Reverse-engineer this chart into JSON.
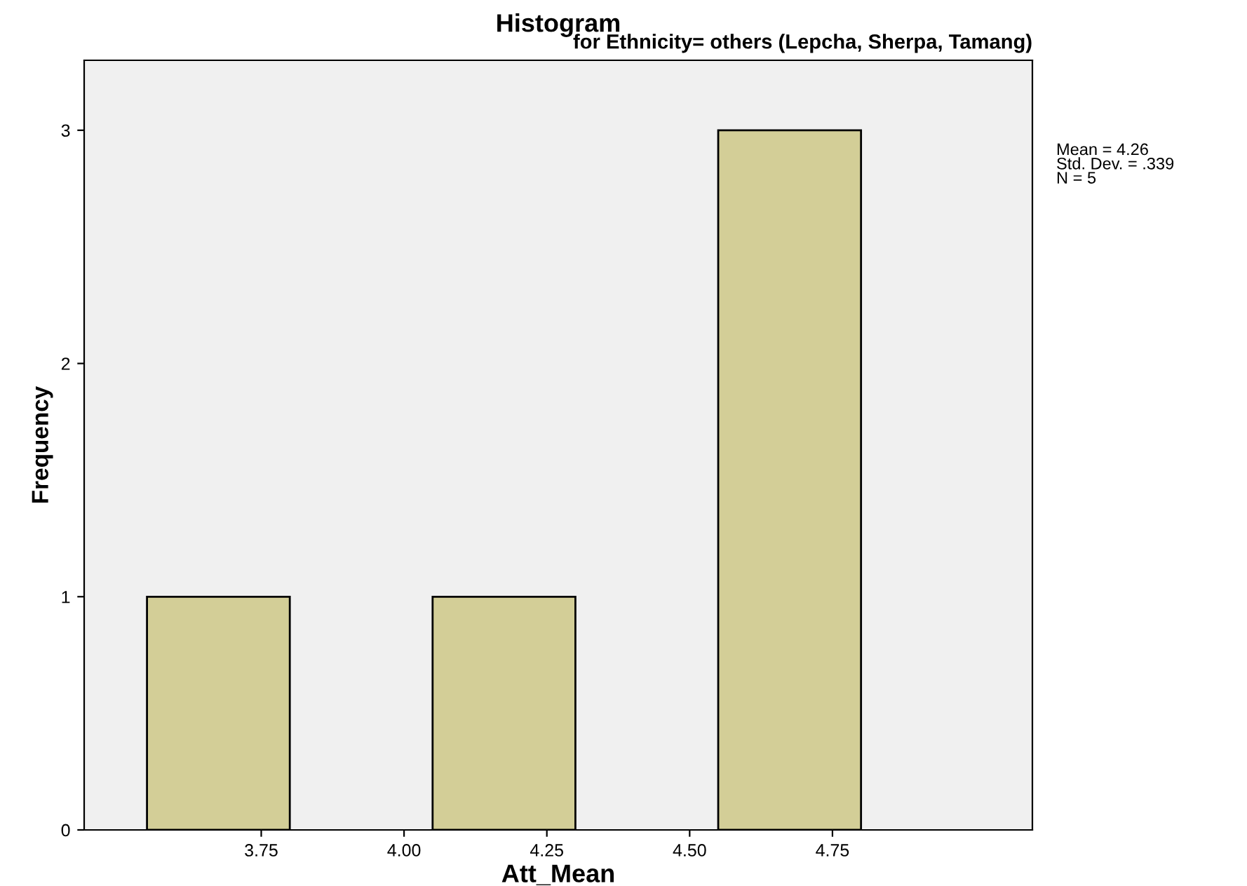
{
  "chart_data": {
    "type": "histogram",
    "title": "Histogram",
    "subtitle": "for Ethnicity= others (Lepcha, Sherpa, Tamang)",
    "xlabel": "Att_Mean",
    "ylabel": "Frequency",
    "bins": [
      3.55,
      3.8,
      4.05,
      4.3,
      4.55,
      4.8
    ],
    "values": [
      1,
      0,
      1,
      0,
      3
    ],
    "color": "#d3ce97",
    "xlim": [
      3.44,
      5.1
    ],
    "xticks": [
      3.75,
      {
        "value": 4,
        "label": "4.00"
      },
      4.25,
      {
        "value": 4.5,
        "label": "4.50"
      },
      4.75
    ],
    "ylim": [
      0,
      3.3
    ],
    "yticks": [
      0,
      1,
      2,
      3
    ],
    "annotations": [
      "Mean = 4.26\nStd. Dev. = .339\nN = 5"
    ],
    "grid": false,
    "legend": false
  }
}
